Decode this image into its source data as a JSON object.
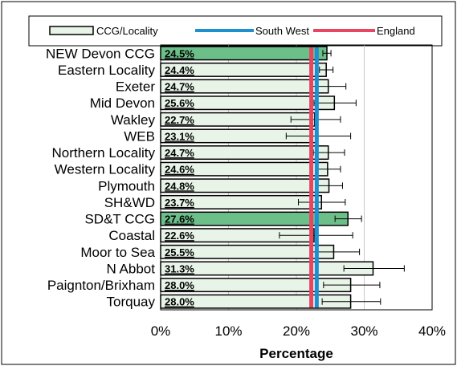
{
  "chart_data": {
    "type": "bar",
    "orientation": "horizontal",
    "title": "",
    "xlabel": "Percentage",
    "ylabel": "",
    "xlim": [
      0,
      40
    ],
    "xticks": [
      0,
      10,
      20,
      30,
      40
    ],
    "tick_suffix": "%",
    "grid": true,
    "legend_position": "top",
    "categories": [
      "NEW Devon CCG",
      "Eastern Locality",
      "Exeter",
      "Mid Devon",
      "Wakley",
      "WEB",
      "Northern Locality",
      "Western Locality",
      "Plymouth",
      "SH&WD",
      "SD&T CCG",
      "Coastal",
      "Moor to Sea",
      "N Abbot",
      "Paignton/Brixham",
      "Torquay"
    ],
    "value_labels": [
      "24.5%",
      "24.4%",
      "24.7%",
      "25.6%",
      "22.7%",
      "23.1%",
      "24.7%",
      "24.6%",
      "24.8%",
      "23.7%",
      "27.6%",
      "22.6%",
      "25.5%",
      "31.3%",
      "28.0%",
      "28.0%"
    ],
    "series": [
      {
        "name": "CCG/Locality",
        "values": [
          24.5,
          24.4,
          24.7,
          25.6,
          22.7,
          23.1,
          24.7,
          24.6,
          24.8,
          23.7,
          27.6,
          22.6,
          25.5,
          31.3,
          28.0,
          28.0
        ],
        "ci_low": [
          23.9,
          23.4,
          22.3,
          22.6,
          19.2,
          18.5,
          22.5,
          22.8,
          22.9,
          20.3,
          25.7,
          17.5,
          22.0,
          27.0,
          24.0,
          23.8
        ],
        "ci_high": [
          25.1,
          25.4,
          27.3,
          28.8,
          26.5,
          28.0,
          27.1,
          26.5,
          26.8,
          27.2,
          29.6,
          28.3,
          29.3,
          35.9,
          32.3,
          32.4
        ],
        "color": "#e8f4e8"
      },
      {
        "name": "South West",
        "value": 23.0,
        "color": "#1e90d0"
      },
      {
        "name": "England",
        "value": 22.2,
        "color": "#e84660"
      }
    ],
    "highlight_categories": [
      "NEW Devon CCG",
      "SD&T CCG"
    ],
    "highlight_color": "#6dbf8a"
  }
}
